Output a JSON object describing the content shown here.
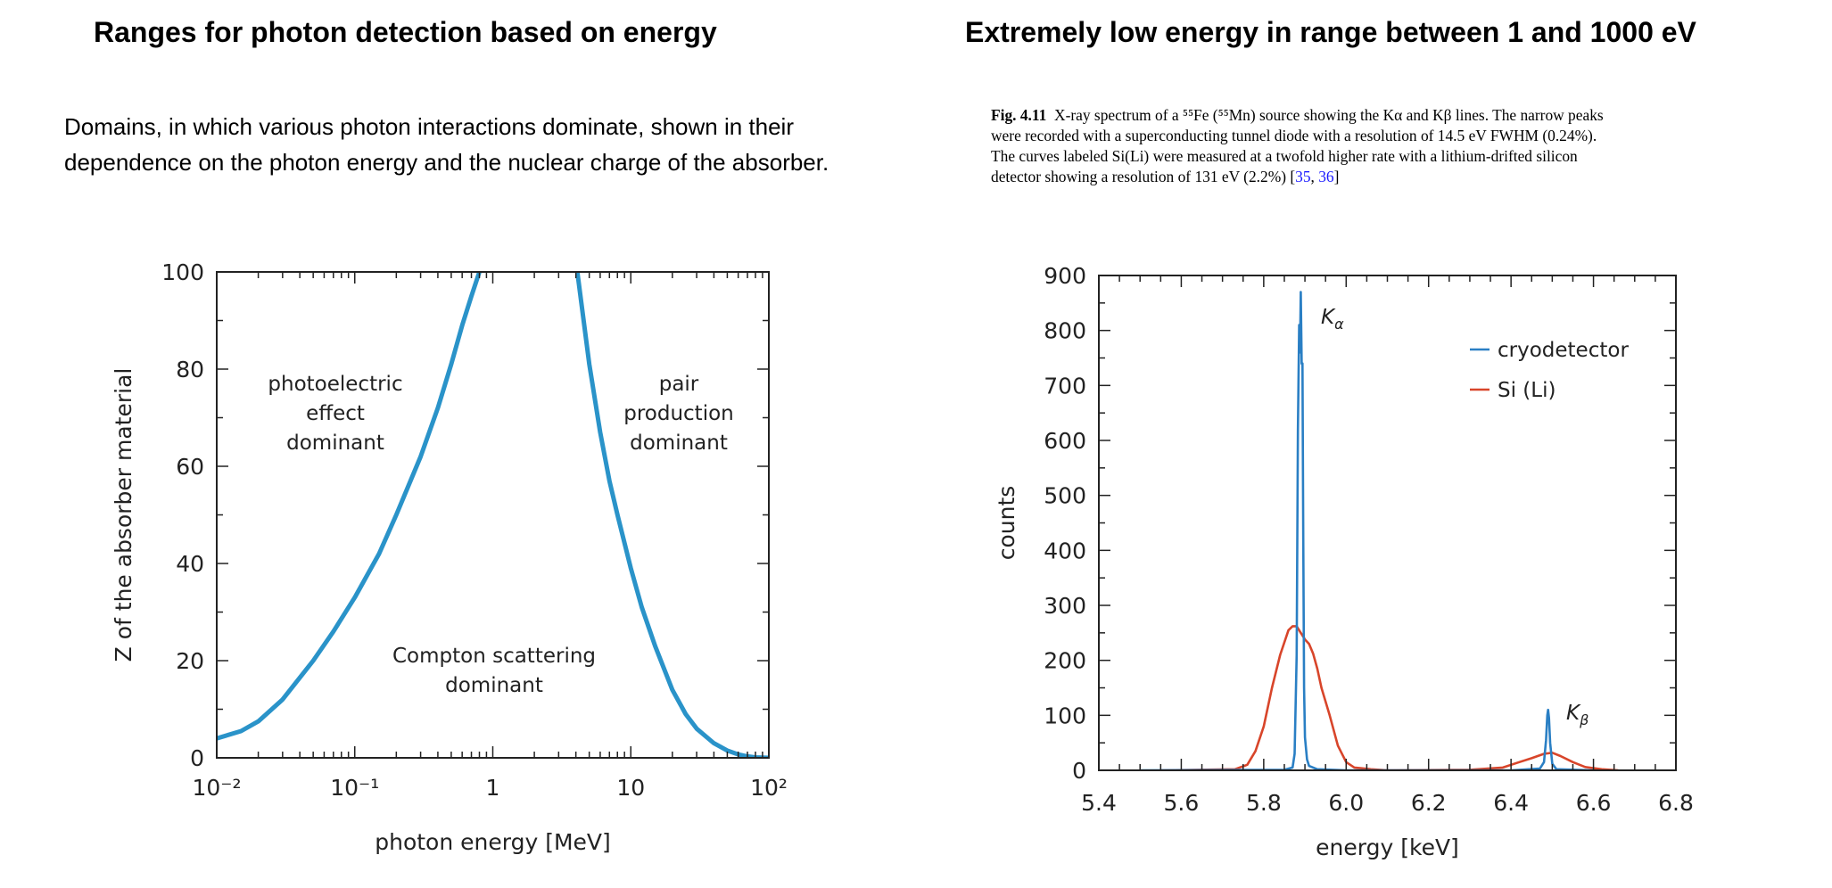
{
  "left": {
    "title": "Ranges for photon detection based on energy",
    "description_lines": [
      "Domains, in which various photon interactions dominate, shown in their",
      "dependence on  the photon energy and the nuclear charge of the absorber."
    ]
  },
  "right": {
    "title": "Extremely low energy in range between 1 and 1000 eV",
    "caption": {
      "fig_number": "Fig. 4.11",
      "lines": [
        "X-ray spectrum of a ⁵⁵Fe (⁵⁵Mn) source showing the Kα and Kβ lines. The narrow peaks",
        "were recorded with a superconducting tunnel diode with a resolution of 14.5 eV FWHM (0.24%).",
        "The curves labeled Si(Li) were measured at a twofold higher rate with a lithium-drifted silicon"
      ],
      "last_line_text": "detector showing a resolution of 131 eV (2.2%) [",
      "refs": [
        "35",
        "36"
      ],
      "last_line_end": "]"
    }
  },
  "chart_data": [
    {
      "type": "line",
      "xlabel": "photon energy [MeV]",
      "ylabel": "Z of the absorber material",
      "xscale": "log",
      "xlim": [
        0.01,
        100
      ],
      "ylim": [
        0,
        100
      ],
      "yticks": [
        0,
        20,
        40,
        60,
        80,
        100
      ],
      "xtick_labels": [
        "10⁻²",
        "10⁻¹",
        "1",
        "10",
        "10²"
      ],
      "line_color": "#2a93c9",
      "series": [
        {
          "x": [
            0.01,
            0.015,
            0.02,
            0.03,
            0.05,
            0.07,
            0.1,
            0.15,
            0.2,
            0.3,
            0.4,
            0.5,
            0.6,
            0.7,
            0.8
          ],
          "y": [
            4,
            5.5,
            7.5,
            12,
            20,
            26,
            33,
            42,
            50,
            62,
            72,
            81,
            89,
            95,
            100
          ]
        },
        {
          "x": [
            4.1,
            5,
            6,
            7,
            8,
            10,
            12,
            15,
            20,
            25,
            30,
            40,
            50,
            60,
            70,
            80,
            100
          ],
          "y": [
            100,
            81,
            67,
            57,
            50,
            39,
            31,
            23,
            14,
            9,
            6,
            3,
            1.5,
            0.7,
            0.3,
            0.1,
            0
          ]
        }
      ],
      "annotations": [
        {
          "lines": [
            "photoelectric",
            "effect",
            "dominant"
          ]
        },
        {
          "lines": [
            "pair",
            "production",
            "dominant"
          ]
        },
        {
          "lines": [
            "Compton scattering",
            "dominant"
          ]
        }
      ]
    },
    {
      "type": "line",
      "xlabel": "energy [keV]",
      "ylabel": "counts",
      "xlim": [
        5.4,
        6.8
      ],
      "ylim": [
        0,
        900
      ],
      "xticks": [
        5.4,
        5.6,
        5.8,
        6.0,
        6.2,
        6.4,
        6.6,
        6.8
      ],
      "xtick_labels": [
        "5.4",
        "5.6",
        "5.8",
        "6.0",
        "6.2",
        "6.4",
        "6.6",
        "6.8"
      ],
      "yticks": [
        0,
        100,
        200,
        300,
        400,
        500,
        600,
        700,
        800,
        900
      ],
      "legend_position": "top-right",
      "series": [
        {
          "name": "cryodetector",
          "color": "#2a7fc4",
          "x": [
            5.5,
            5.85,
            5.87,
            5.875,
            5.88,
            5.883,
            5.886,
            5.888,
            5.89,
            5.892,
            5.894,
            5.896,
            5.898,
            5.9,
            5.905,
            5.91,
            5.93,
            6.0,
            6.4,
            6.47,
            6.48,
            6.485,
            6.488,
            6.49,
            6.492,
            6.495,
            6.5,
            6.51,
            6.6
          ],
          "y": [
            0,
            1,
            5,
            30,
            210,
            620,
            810,
            760,
            870,
            740,
            740,
            420,
            150,
            60,
            20,
            8,
            2,
            0,
            0,
            3,
            15,
            55,
            100,
            110,
            95,
            50,
            12,
            2,
            0
          ]
        },
        {
          "name": "Si (Li)",
          "color": "#d8452a",
          "x": [
            5.55,
            5.73,
            5.76,
            5.78,
            5.8,
            5.82,
            5.84,
            5.86,
            5.87,
            5.88,
            5.89,
            5.9,
            5.91,
            5.92,
            5.93,
            5.94,
            5.96,
            5.98,
            6.0,
            6.02,
            6.06,
            6.1,
            6.3,
            6.38,
            6.42,
            6.45,
            6.48,
            6.5,
            6.52,
            6.55,
            6.58,
            6.62,
            6.66
          ],
          "y": [
            0,
            2,
            10,
            35,
            80,
            150,
            210,
            255,
            262,
            262,
            250,
            238,
            230,
            212,
            185,
            150,
            100,
            45,
            15,
            5,
            2,
            0,
            1,
            5,
            15,
            22,
            30,
            32,
            26,
            15,
            6,
            2,
            0
          ]
        }
      ],
      "annotations": [
        {
          "text": "K",
          "subscript": "α"
        },
        {
          "text": "K",
          "subscript": "β"
        }
      ]
    }
  ]
}
